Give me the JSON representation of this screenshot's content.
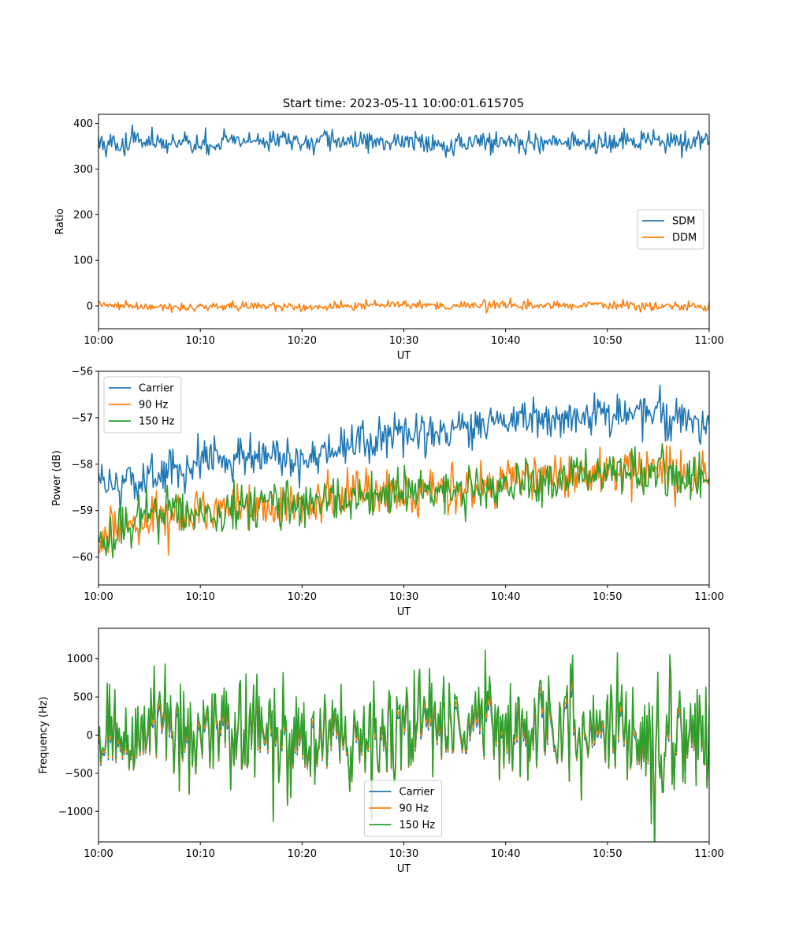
{
  "figure": {
    "title": "Start time: 2023-05-11 10:00:01.615705"
  },
  "chart_data": [
    {
      "type": "line",
      "title": "Start time: 2023-05-11 10:00:01.615705",
      "xlabel": "UT",
      "ylabel": "Ratio",
      "xlim": [
        "10:00",
        "11:00"
      ],
      "xticks": [
        "10:00",
        "10:10",
        "10:20",
        "10:30",
        "10:40",
        "10:50",
        "11:00"
      ],
      "ylim": [
        -50,
        420
      ],
      "yticks": [
        0,
        100,
        200,
        300,
        400
      ],
      "ytick_labels": [
        "0",
        "100",
        "200",
        "300",
        "400"
      ],
      "grid": false,
      "legend": "center-right",
      "x": [
        "10:00",
        "10:05",
        "10:10",
        "10:15",
        "10:20",
        "10:25",
        "10:30",
        "10:35",
        "10:40",
        "10:45",
        "10:50",
        "10:55",
        "11:00"
      ],
      "series": [
        {
          "name": "SDM",
          "color": "#1f77b4",
          "values": [
            355,
            360,
            352,
            365,
            358,
            362,
            360,
            356,
            361,
            358,
            355,
            362,
            360
          ]
        },
        {
          "name": "DDM",
          "color": "#ff7f0e",
          "values": [
            2,
            -3,
            -2,
            0,
            -4,
            1,
            5,
            0,
            2,
            1,
            3,
            0,
            -2
          ]
        }
      ]
    },
    {
      "type": "line",
      "title": "",
      "xlabel": "UT",
      "ylabel": "Power (dB)",
      "xlim": [
        "10:00",
        "11:00"
      ],
      "xticks": [
        "10:00",
        "10:10",
        "10:20",
        "10:30",
        "10:40",
        "10:50",
        "11:00"
      ],
      "ylim": [
        -60.6,
        -56
      ],
      "yticks": [
        -60,
        -59,
        -58,
        -57,
        -56
      ],
      "ytick_labels": [
        "−60",
        "−59",
        "−58",
        "−57",
        "−56"
      ],
      "grid": false,
      "legend": "top-left",
      "x": [
        "10:00",
        "10:05",
        "10:10",
        "10:15",
        "10:20",
        "10:25",
        "10:30",
        "10:35",
        "10:40",
        "10:45",
        "10:50",
        "10:55",
        "11:00"
      ],
      "series": [
        {
          "name": "Carrier",
          "color": "#1f77b4",
          "values": [
            -58.5,
            -58.3,
            -57.9,
            -57.8,
            -57.9,
            -57.6,
            -57.4,
            -57.3,
            -57.1,
            -57.0,
            -56.9,
            -56.9,
            -57.2
          ]
        },
        {
          "name": "90 Hz",
          "color": "#ff7f0e",
          "values": [
            -59.6,
            -59.2,
            -59.0,
            -58.9,
            -58.9,
            -58.6,
            -58.6,
            -58.5,
            -58.4,
            -58.3,
            -58.2,
            -58.2,
            -58.3
          ]
        },
        {
          "name": "150 Hz",
          "color": "#2ca02c",
          "values": [
            -59.6,
            -59.1,
            -59.0,
            -59.0,
            -58.9,
            -58.7,
            -58.6,
            -58.5,
            -58.4,
            -58.3,
            -58.2,
            -58.2,
            -58.3
          ]
        }
      ]
    },
    {
      "type": "line",
      "title": "",
      "xlabel": "UT",
      "ylabel": "Frequency (Hz)",
      "xlim": [
        "10:00",
        "11:00"
      ],
      "xticks": [
        "10:00",
        "10:10",
        "10:20",
        "10:30",
        "10:40",
        "10:50",
        "11:00"
      ],
      "ylim": [
        -1400,
        1400
      ],
      "yticks": [
        -1000,
        -500,
        0,
        500,
        1000
      ],
      "ytick_labels": [
        "−1000",
        "−500",
        "0",
        "500",
        "1000"
      ],
      "grid": false,
      "legend": "bottom-center",
      "x": [
        "10:00",
        "10:05",
        "10:10",
        "10:15",
        "10:20",
        "10:25",
        "10:30",
        "10:35",
        "10:40",
        "10:45",
        "10:50",
        "10:55",
        "11:00"
      ],
      "series": [
        {
          "name": "Carrier",
          "color": "#1f77b4",
          "values": [
            -100,
            80,
            0,
            50,
            -150,
            60,
            20,
            100,
            -50,
            40,
            0,
            -80,
            100
          ]
        },
        {
          "name": "90 Hz",
          "color": "#ff7f0e",
          "values": [
            -50,
            120,
            40,
            90,
            -110,
            100,
            60,
            140,
            -10,
            80,
            40,
            -40,
            140
          ]
        },
        {
          "name": "150 Hz",
          "color": "#2ca02c",
          "values": [
            0,
            180,
            90,
            140,
            -60,
            160,
            110,
            190,
            40,
            130,
            90,
            10,
            190
          ]
        }
      ]
    }
  ]
}
